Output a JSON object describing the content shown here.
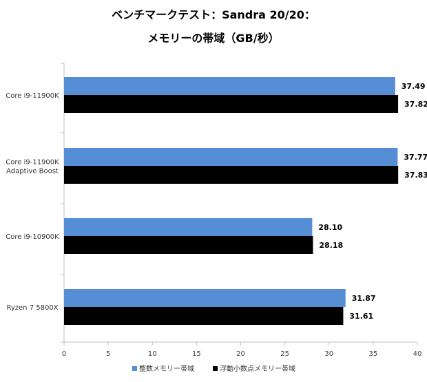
{
  "chart_data": {
    "type": "bar",
    "orientation": "horizontal",
    "title_lines": [
      "ベンチマークテスト：Sandra 20/20：",
      "メモリーの帯域（GB/秒）"
    ],
    "categories": [
      [
        "Core i9-11900K"
      ],
      [
        "Core i9-11900K",
        "Adaptive Boost"
      ],
      [
        "Core i9-10900K"
      ],
      [
        "Ryzen 7 5800X"
      ]
    ],
    "series": [
      {
        "name": "整数メモリー帯域",
        "color": "#558ed5",
        "values": [
          37.49,
          37.77,
          28.1,
          31.87
        ],
        "labels": [
          "37.49",
          "37.77",
          "28.10",
          "31.87"
        ]
      },
      {
        "name": "浮動小数点メモリー帯域",
        "color": "#000000",
        "values": [
          37.82,
          37.83,
          28.18,
          31.61
        ],
        "labels": [
          "37.82",
          "37.83",
          "28.18",
          "31.61"
        ]
      }
    ],
    "xlim": [
      0,
      40
    ],
    "xticks": [
      "0",
      "5",
      "10",
      "15",
      "20",
      "25",
      "30",
      "35",
      "40"
    ],
    "grid": false,
    "legend_position": "bottom"
  }
}
